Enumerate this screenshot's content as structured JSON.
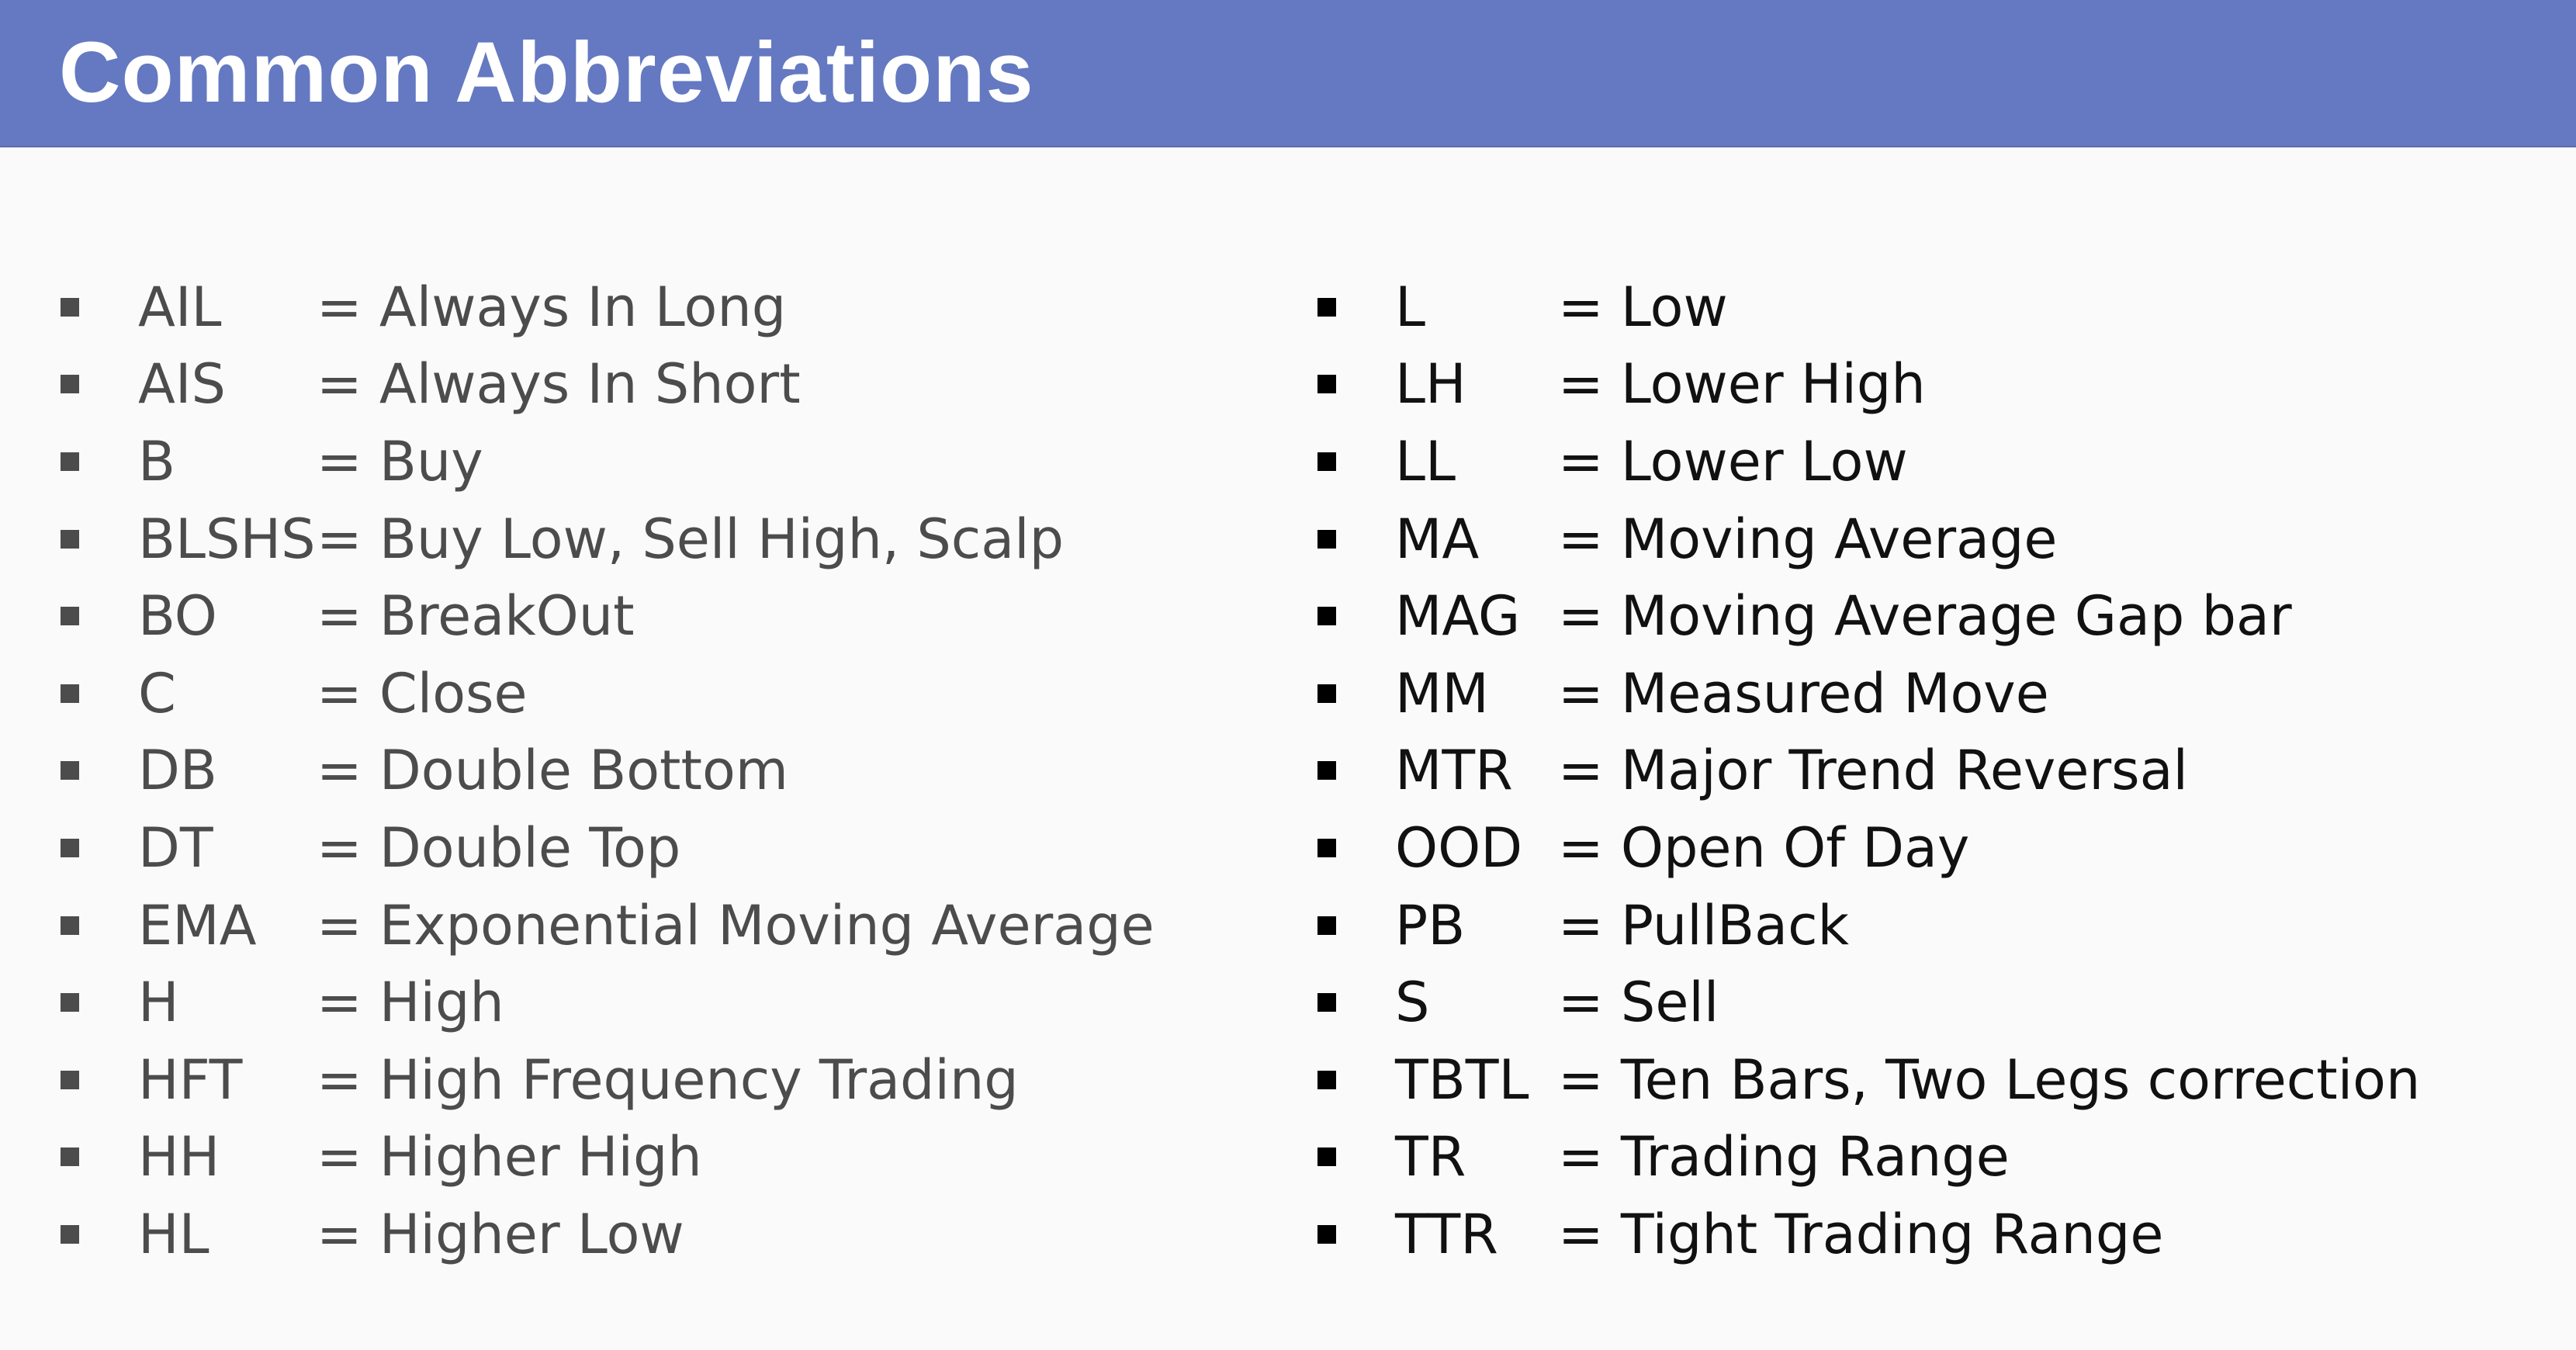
{
  "title": "Common Abbreviations",
  "left_items": [
    {
      "abbr": "AIL",
      "definition": "= Always In Long"
    },
    {
      "abbr": "AIS",
      "definition": "= Always In Short"
    },
    {
      "abbr": "B",
      "definition": "=  Buy"
    },
    {
      "abbr": "BLSHS",
      "definition": "= Buy Low, Sell High, Scalp"
    },
    {
      "abbr": "BO",
      "definition": "= BreakOut"
    },
    {
      "abbr": "C",
      "definition": "= Close"
    },
    {
      "abbr": "DB",
      "definition": "= Double Bottom"
    },
    {
      "abbr": "DT",
      "definition": "= Double Top"
    },
    {
      "abbr": "EMA",
      "definition": "= Exponential Moving Average"
    },
    {
      "abbr": "H",
      "definition": "= High"
    },
    {
      "abbr": "HFT",
      "definition": "= High Frequency Trading"
    },
    {
      "abbr": "HH",
      "definition": "= Higher High"
    },
    {
      "abbr": "HL",
      "definition": "= Higher Low"
    }
  ],
  "right_items": [
    {
      "abbr": "L",
      "definition": "= Low"
    },
    {
      "abbr": "LH",
      "definition": "= Lower High"
    },
    {
      "abbr": "LL",
      "definition": "= Lower Low"
    },
    {
      "abbr": "MA",
      "definition": "= Moving Average"
    },
    {
      "abbr": "MAG",
      "definition": "= Moving Average Gap bar"
    },
    {
      "abbr": "MM",
      "definition": "= Measured Move"
    },
    {
      "abbr": "MTR",
      "definition": "= Major Trend Reversal"
    },
    {
      "abbr": "OOD",
      "definition": "= Open Of Day"
    },
    {
      "abbr": "PB",
      "definition": "= PullBack"
    },
    {
      "abbr": "S",
      "definition": "= Sell"
    },
    {
      "abbr": "TBTL",
      "definition": "= Ten Bars, Two Legs correction"
    },
    {
      "abbr": "TR",
      "definition": "= Trading Range"
    },
    {
      "abbr": "TTR",
      "definition": "= Tight Trading Range"
    }
  ],
  "colors": {
    "header_bar": "#6479c1",
    "title_text": "#ffffff",
    "left_text": "#4c4c4c",
    "right_text": "#111111",
    "background": "#fafafa"
  }
}
